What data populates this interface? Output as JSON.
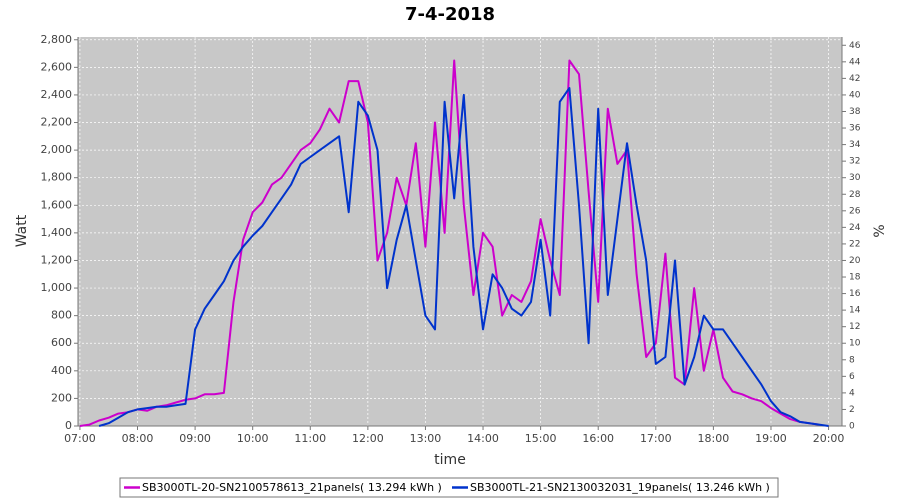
{
  "chart_data": {
    "type": "line",
    "title": "7-4-2018",
    "xlabel": "time",
    "ylabel": "Watt",
    "y2label": "%",
    "x": [
      "07:00",
      "07:10",
      "07:20",
      "07:30",
      "07:40",
      "07:50",
      "08:00",
      "08:10",
      "08:20",
      "08:30",
      "08:40",
      "08:50",
      "09:00",
      "09:10",
      "09:20",
      "09:30",
      "09:40",
      "09:50",
      "10:00",
      "10:10",
      "10:20",
      "10:30",
      "10:40",
      "10:50",
      "11:00",
      "11:10",
      "11:20",
      "11:30",
      "11:40",
      "11:50",
      "12:00",
      "12:10",
      "12:20",
      "12:30",
      "12:40",
      "12:50",
      "13:00",
      "13:10",
      "13:20",
      "13:30",
      "13:40",
      "13:50",
      "14:00",
      "14:10",
      "14:20",
      "14:30",
      "14:40",
      "14:50",
      "15:00",
      "15:10",
      "15:20",
      "15:30",
      "15:40",
      "15:50",
      "16:00",
      "16:10",
      "16:20",
      "16:30",
      "16:40",
      "16:50",
      "17:00",
      "17:10",
      "17:20",
      "17:30",
      "17:40",
      "17:50",
      "18:00",
      "18:10",
      "18:20",
      "18:30",
      "18:40",
      "18:50",
      "19:00",
      "19:10",
      "19:20",
      "19:30",
      "19:40",
      "19:50",
      "20:00"
    ],
    "series": [
      {
        "name": "SB3000TL-20-SN2100578613_21panels( 13.294 kWh )",
        "color": "#cc00cc",
        "values": [
          0,
          10,
          40,
          60,
          90,
          100,
          120,
          110,
          140,
          150,
          170,
          190,
          200,
          230,
          230,
          240,
          900,
          1350,
          1550,
          1620,
          1750,
          1800,
          1900,
          2000,
          2050,
          2150,
          2300,
          2200,
          2500,
          2500,
          2200,
          1200,
          1400,
          1800,
          1600,
          2050,
          1300,
          2200,
          1400,
          2650,
          1600,
          950,
          1400,
          1300,
          800,
          950,
          900,
          1050,
          1500,
          1200,
          950,
          2650,
          2550,
          1700,
          900,
          2300,
          1900,
          2000,
          1100,
          500,
          600,
          1250,
          350,
          300,
          1000,
          400,
          700,
          350,
          250,
          230,
          200,
          180,
          130,
          90,
          50,
          30,
          20,
          10,
          null
        ]
      },
      {
        "name": "SB3000TL-21-SN2130032031_19panels( 13.246 kWh )",
        "color": "#0033cc",
        "values": [
          null,
          null,
          0,
          20,
          60,
          100,
          120,
          130,
          140,
          140,
          150,
          160,
          700,
          850,
          950,
          1050,
          1200,
          1300,
          1380,
          1450,
          1550,
          1650,
          1750,
          1900,
          1950,
          2000,
          2050,
          2100,
          1550,
          2350,
          2250,
          2000,
          1000,
          1350,
          1600,
          1200,
          800,
          700,
          2350,
          1650,
          2400,
          1300,
          700,
          1100,
          1000,
          850,
          800,
          900,
          1350,
          800,
          2350,
          2450,
          1600,
          600,
          2300,
          950,
          1500,
          2050,
          1600,
          1200,
          450,
          500,
          1200,
          300,
          500,
          800,
          700,
          700,
          600,
          500,
          400,
          300,
          180,
          100,
          70,
          30,
          20,
          10,
          0
        ]
      }
    ],
    "xlim": [
      "06:58",
      "20:14"
    ],
    "xticks": [
      "07:00",
      "08:00",
      "09:00",
      "10:00",
      "11:00",
      "12:00",
      "13:00",
      "14:00",
      "15:00",
      "16:00",
      "17:00",
      "18:00",
      "19:00",
      "20:00"
    ],
    "ylim": [
      0,
      2820
    ],
    "yticks": [
      0,
      200,
      400,
      600,
      800,
      {
        "value": 1000,
        "label": "1,000"
      },
      {
        "value": 1200,
        "label": "1,200"
      },
      {
        "value": 1400,
        "label": "1,400"
      },
      {
        "value": 1600,
        "label": "1,600"
      },
      {
        "value": 1800,
        "label": "1,800"
      },
      {
        "value": 2000,
        "label": "2,000"
      },
      {
        "value": 2200,
        "label": "2,200"
      },
      {
        "value": 2400,
        "label": "2,400"
      },
      {
        "value": 2600,
        "label": "2,600"
      },
      {
        "value": 2800,
        "label": "2,800"
      }
    ],
    "y2lim": [
      0,
      47
    ],
    "y2ticks": [
      0,
      2,
      4,
      6,
      8,
      10,
      12,
      14,
      16,
      18,
      20,
      22,
      24,
      26,
      28,
      30,
      32,
      34,
      36,
      38,
      40,
      42,
      44,
      46
    ],
    "grid": true,
    "legend": "bottom"
  }
}
